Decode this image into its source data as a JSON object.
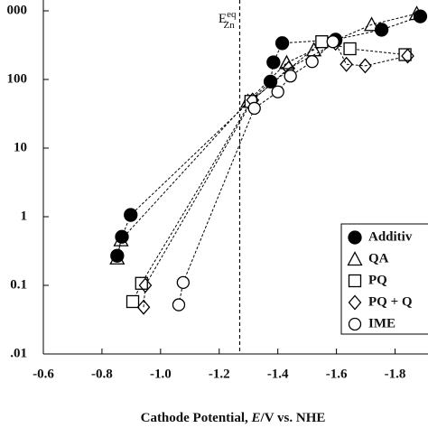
{
  "chart_data": {
    "type": "scatter",
    "x_label": [
      "Cathode Potential, ",
      "E",
      "/V vs. NHE"
    ],
    "xlim": [
      -0.6,
      -1.9
    ],
    "xticks": [
      -0.6,
      -0.8,
      {
        "value": -1,
        "label": "-1.0"
      },
      -1.2,
      -1.4,
      -1.6,
      -1.8
    ],
    "ylim": [
      0.01,
      1000
    ],
    "log_y": true,
    "yticks": [
      {
        "value": 0.01,
        "label": ".01"
      },
      0.1,
      1,
      10,
      100,
      {
        "value": 1000,
        "label": "000"
      }
    ],
    "annotation": {
      "text": "E",
      "sup": "eq",
      "sub": "Zn",
      "x": -1.27
    },
    "series": [
      {
        "name": "Additiv",
        "marker": "circle-filled",
        "color": "#000000",
        "x": [
          -0.852,
          -0.868,
          -0.898,
          -1.375,
          -1.385,
          -1.415,
          -1.597,
          -1.754,
          -1.886
        ],
        "values": [
          0.27,
          0.51,
          1.06,
          93,
          178,
          338,
          380,
          530,
          830
        ]
      },
      {
        "name": "QA",
        "marker": "triangle",
        "color": "#000000",
        "x": [
          -0.852,
          -0.865,
          -1.298,
          -1.43,
          -1.523,
          -1.72,
          -1.874
        ],
        "values": [
          0.25,
          0.46,
          48,
          175,
          270,
          630,
          910
        ]
      },
      {
        "name": "PQ",
        "marker": "square",
        "color": "#000000",
        "x": [
          -0.905,
          -0.935,
          -1.308,
          -1.55,
          -1.646,
          -1.834
        ],
        "values": [
          0.058,
          0.107,
          48,
          355,
          280,
          230
        ]
      },
      {
        "name": "PQ + Q",
        "marker": "diamond",
        "color": "#000000",
        "x": [
          -0.942,
          -0.948,
          -1.314,
          -1.437,
          -1.597,
          -1.634,
          -1.698,
          -1.843
        ],
        "values": [
          0.048,
          0.1,
          50,
          145,
          338,
          166,
          158,
          220
        ]
      },
      {
        "name": "IME",
        "marker": "circle",
        "color": "#000000",
        "x": [
          -1.062,
          -1.077,
          -1.32,
          -1.4,
          -1.443,
          -1.517,
          -1.588
        ],
        "values": [
          0.052,
          0.11,
          38,
          66,
          112,
          182,
          355
        ]
      }
    ]
  }
}
